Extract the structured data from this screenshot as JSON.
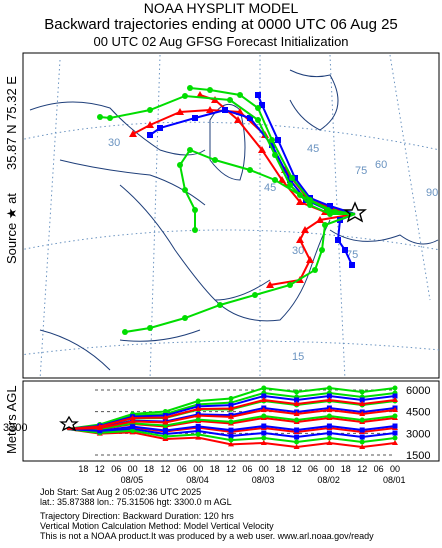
{
  "header": {
    "title": "NOAA HYSPLIT MODEL",
    "subtitle": "Backward trajectories ending at 0000 UTC 06 Aug 25",
    "init_line": "00 UTC 02 Aug    GFSG  Forecast Initialization"
  },
  "side": {
    "source_label": "Source ★ at",
    "coords": "35.87 N   75.32 E",
    "meters_label": "Meters AGL"
  },
  "chart_data": {
    "type": "line",
    "map": {
      "lat_labels": [
        "30",
        "45",
        "60",
        "75",
        "90",
        "30",
        "45",
        "75",
        "15"
      ],
      "source_lat": 35.87,
      "source_lon": 75.32,
      "source_marker": "star"
    },
    "trajectories": [
      {
        "color": "#ff0000",
        "marker": "triangle",
        "height": 3300
      },
      {
        "color": "#0000ff",
        "marker": "square",
        "height": 3300
      },
      {
        "color": "#00cc00",
        "marker": "circle",
        "height": 3300
      }
    ],
    "height_panel": {
      "start_height": "3300",
      "y_ticks": [
        "6000",
        "4500",
        "3000",
        "1500"
      ],
      "x_ticks": [
        "18",
        "12",
        "06",
        "00",
        "18",
        "12",
        "06",
        "00",
        "18",
        "12",
        "06",
        "00",
        "18",
        "12",
        "06",
        "00",
        "18",
        "12",
        "06",
        "00"
      ],
      "date_labels": [
        "08/05",
        "08/04",
        "08/03",
        "08/02",
        "08/01"
      ]
    }
  },
  "info": {
    "line1": "Job Start: Sat Aug  2 05:02:36 UTC 2025",
    "line2": "lat.: 35.87388   lon.: 75.31506   hgt: 3300.0 m AGL",
    "line3": "Trajectory Direction: Backward          Duration: 120 hrs",
    "line4": "Vertical Motion Calculation Method: Model Vertical Velocity",
    "line5": "This is not a NOAA product.It was produced by a web user. www.arl.noaa.gov/ready"
  },
  "colors": {
    "red": "#ff0000",
    "blue": "#0000ff",
    "green": "#00dd00",
    "grid": "#5f86b3"
  }
}
